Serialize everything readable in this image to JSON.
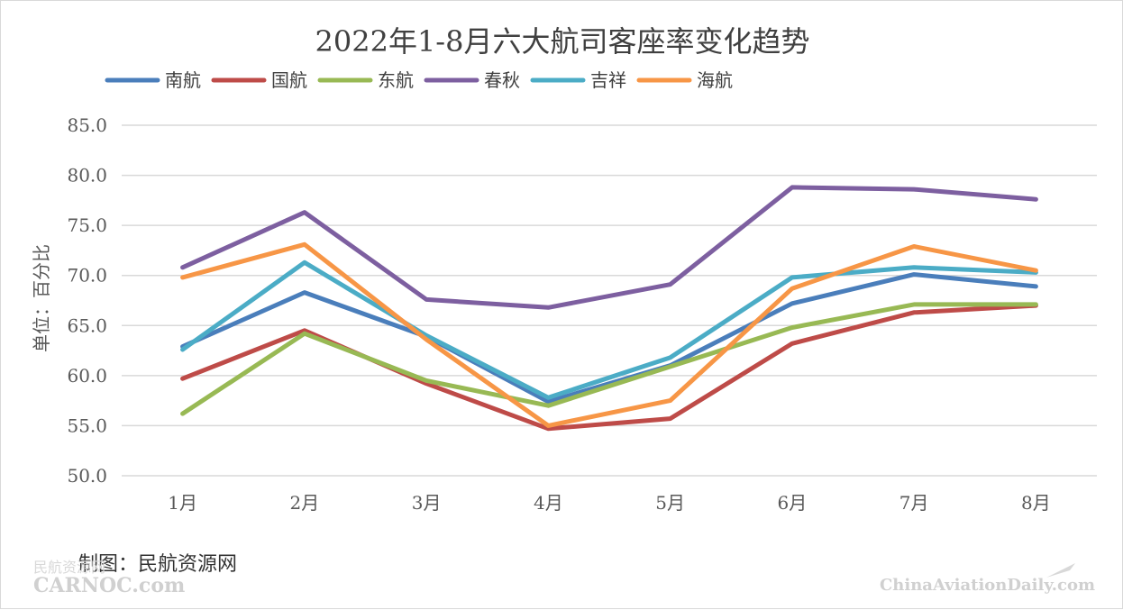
{
  "chart_data": {
    "type": "line",
    "title": "2022年1-8月六大航司客座率变化趋势",
    "ylabel": "单位：百分比",
    "xlabel": "",
    "categories": [
      "1月",
      "2月",
      "3月",
      "4月",
      "5月",
      "6月",
      "7月",
      "8月"
    ],
    "ylim": [
      50,
      85
    ],
    "yticks": [
      "50.0",
      "55.0",
      "60.0",
      "65.0",
      "70.0",
      "75.0",
      "80.0",
      "85.0"
    ],
    "grid": true,
    "legend_position": "top-left",
    "series": [
      {
        "name": "南航",
        "color": "#4a7ebb",
        "values": [
          62.9,
          68.3,
          63.9,
          57.4,
          61.0,
          67.2,
          70.1,
          68.9
        ]
      },
      {
        "name": "国航",
        "color": "#be4b48",
        "values": [
          59.7,
          64.5,
          59.2,
          54.7,
          55.7,
          63.2,
          66.3,
          67.0
        ]
      },
      {
        "name": "东航",
        "color": "#98b954",
        "values": [
          56.2,
          64.2,
          59.5,
          57.0,
          60.9,
          64.8,
          67.1,
          67.1
        ]
      },
      {
        "name": "春秋",
        "color": "#7d5fa0",
        "values": [
          70.8,
          76.3,
          67.6,
          66.8,
          69.1,
          78.8,
          78.6,
          77.6
        ]
      },
      {
        "name": "吉祥",
        "color": "#4bacc6",
        "values": [
          62.6,
          71.3,
          64.0,
          57.8,
          61.8,
          69.8,
          70.8,
          70.3
        ]
      },
      {
        "name": "海航",
        "color": "#f79646",
        "values": [
          69.8,
          73.1,
          63.6,
          55.0,
          57.5,
          68.7,
          72.9,
          70.5
        ]
      }
    ]
  },
  "credit": "制图：民航资源网",
  "watermarks": {
    "left_small": "民航资源网",
    "left": "CARNOC.com",
    "right": "ChinaAviationDaily.com"
  }
}
